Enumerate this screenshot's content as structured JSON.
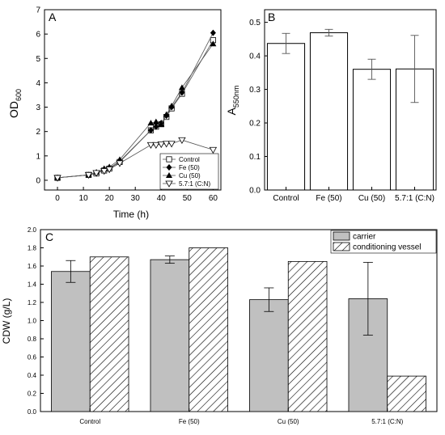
{
  "chart_data": [
    {
      "panel": "A",
      "type": "line",
      "xlabel": "Time (h)",
      "ylabel_main": "OD",
      "ylabel_sub": "600",
      "xlim": [
        -5,
        63
      ],
      "ylim": [
        -0.4,
        7
      ],
      "xticks": [
        0,
        10,
        20,
        30,
        40,
        50,
        60
      ],
      "yticks": [
        0,
        1,
        2,
        3,
        4,
        5,
        6,
        7
      ],
      "legend_position": "bottom-right",
      "series": [
        {
          "name": "Control",
          "marker": "open-square",
          "x": [
            0,
            12,
            15,
            18,
            20,
            24,
            36,
            38,
            40,
            42,
            44,
            48,
            60
          ],
          "y": [
            0.1,
            0.22,
            0.28,
            0.4,
            0.48,
            0.75,
            2.05,
            2.2,
            2.3,
            2.6,
            2.95,
            3.55,
            5.75
          ]
        },
        {
          "name": "Fe (50)",
          "marker": "filled-diamond",
          "x": [
            0,
            12,
            15,
            18,
            20,
            24,
            36,
            38,
            40,
            42,
            44,
            48,
            60
          ],
          "y": [
            0.1,
            0.22,
            0.3,
            0.43,
            0.5,
            0.78,
            2.05,
            2.2,
            2.35,
            2.65,
            3.0,
            3.6,
            6.05
          ]
        },
        {
          "name": "Cu (50)",
          "marker": "filled-triangle-up",
          "x": [
            0,
            12,
            15,
            18,
            20,
            24,
            36,
            38,
            40,
            42,
            44,
            48,
            60
          ],
          "y": [
            0.1,
            0.22,
            0.33,
            0.48,
            0.55,
            0.85,
            2.35,
            2.4,
            2.3,
            2.7,
            3.05,
            3.8,
            5.6
          ]
        },
        {
          "name": "5.7:1 (C:N)",
          "marker": "open-triangle-down",
          "x": [
            0,
            12,
            15,
            18,
            20,
            24,
            36,
            38,
            40,
            42,
            44,
            48,
            60
          ],
          "y": [
            0.1,
            0.22,
            0.3,
            0.38,
            0.45,
            0.7,
            1.45,
            1.45,
            1.48,
            1.5,
            1.5,
            1.65,
            1.25
          ]
        }
      ]
    },
    {
      "panel": "B",
      "type": "bar",
      "ylabel_main": "A",
      "ylabel_sub": "550nm",
      "ylim": [
        0,
        0.5
      ],
      "yticks": [
        "0.0",
        "0.1",
        "0.2",
        "0.3",
        "0.4",
        "0.5"
      ],
      "categories": [
        "Control",
        "Fe (50)",
        "Cu (50)",
        "5.7:1 (C:N)"
      ],
      "values": [
        0.437,
        0.469,
        0.36,
        0.361
      ],
      "errors": [
        0.03,
        0.01,
        0.03,
        0.1
      ]
    },
    {
      "panel": "C",
      "type": "bar",
      "ylabel": "CDW (g/L)",
      "ylim": [
        0,
        2.0
      ],
      "yticks": [
        "0.0",
        "0.2",
        "0.4",
        "0.6",
        "0.8",
        "1.0",
        "1.2",
        "1.4",
        "1.6",
        "1.8",
        "2.0"
      ],
      "categories": [
        "Control",
        "Fe (50)",
        "Cu (50)",
        "5.7:1 (C:N)"
      ],
      "legend_position": "top-right",
      "series": [
        {
          "name": "carrier",
          "fill": "#c0c0c0",
          "values": [
            1.54,
            1.67,
            1.23,
            1.24
          ],
          "errors": [
            0.12,
            0.04,
            0.13,
            0.4
          ]
        },
        {
          "name": "conditioning vessel",
          "fill": "hatch",
          "values": [
            1.7,
            1.8,
            1.65,
            0.39
          ],
          "errors": [
            0,
            0,
            0,
            0
          ]
        }
      ]
    }
  ]
}
